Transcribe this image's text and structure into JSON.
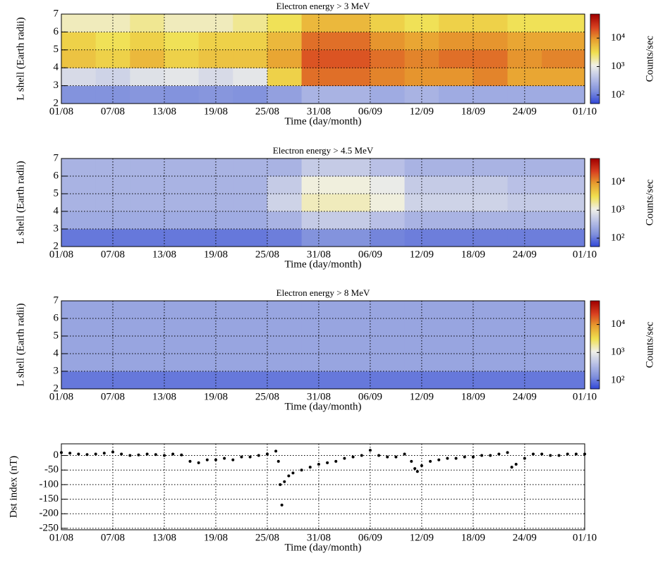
{
  "chart_data": [
    {
      "type": "heatmap",
      "title": "Electron energy > 3 MeV",
      "xlabel": "Time (day/month)",
      "ylabel": "L shell (Earth radii)",
      "zlabel": "Counts/sec",
      "x_edges": [
        0,
        4,
        8,
        12,
        16,
        20,
        24,
        28,
        32,
        36,
        40,
        44,
        48,
        52,
        56,
        61
      ],
      "y_edges": [
        2,
        3,
        4,
        5,
        6,
        7
      ],
      "z": [
        [
          150,
          150,
          160,
          150,
          160,
          150,
          200,
          300,
          300,
          250,
          300,
          250,
          250,
          250,
          250
        ],
        [
          700,
          600,
          800,
          900,
          700,
          900,
          4000,
          15000,
          15000,
          12000,
          10000,
          10000,
          12000,
          8000,
          8000
        ],
        [
          5000,
          4000,
          6000,
          4000,
          5000,
          5000,
          8000,
          20000,
          20000,
          15000,
          12000,
          15000,
          15000,
          10000,
          12000
        ],
        [
          4000,
          3000,
          4000,
          3000,
          4000,
          4000,
          6000,
          15000,
          15000,
          10000,
          8000,
          10000,
          10000,
          8000,
          8000
        ],
        [
          1500,
          1500,
          2000,
          1500,
          1500,
          2000,
          3000,
          6000,
          6000,
          4000,
          3000,
          4000,
          4000,
          3000,
          3000
        ]
      ],
      "xlim": [
        0,
        61
      ],
      "ylim": [
        2,
        7
      ],
      "zlim": [
        50,
        70000
      ],
      "zscale": "log",
      "xticks": [
        {
          "value": 0,
          "label": "01/08"
        },
        {
          "value": 6,
          "label": "07/08"
        },
        {
          "value": 12,
          "label": "13/08"
        },
        {
          "value": 18,
          "label": "19/08"
        },
        {
          "value": 24,
          "label": "25/08"
        },
        {
          "value": 30,
          "label": "31/08"
        },
        {
          "value": 36,
          "label": "06/09"
        },
        {
          "value": 42,
          "label": "12/09"
        },
        {
          "value": 48,
          "label": "18/09"
        },
        {
          "value": 54,
          "label": "24/09"
        },
        {
          "value": 61,
          "label": "01/10"
        }
      ],
      "yticks": [
        2,
        3,
        4,
        5,
        6,
        7
      ],
      "zticks": [
        {
          "value": 100,
          "label": "10²"
        },
        {
          "value": 1000,
          "label": "10³"
        },
        {
          "value": 10000,
          "label": "10⁴"
        }
      ],
      "colormap": [
        "#3046d8",
        "#8090dc",
        "#b8c0e6",
        "#f0f0e8",
        "#f0e050",
        "#e8a030",
        "#d84020",
        "#a00000"
      ],
      "grid": true
    },
    {
      "type": "heatmap",
      "title": "Electron energy > 4.5 MeV",
      "xlabel": "Time (day/month)",
      "ylabel": "L shell (Earth radii)",
      "zlabel": "Counts/sec",
      "x_edges": [
        0,
        4,
        8,
        12,
        16,
        20,
        24,
        28,
        32,
        36,
        40,
        44,
        48,
        52,
        56,
        61
      ],
      "y_edges": [
        2,
        3,
        4,
        5,
        6,
        7
      ],
      "z": [
        [
          100,
          100,
          100,
          100,
          100,
          100,
          110,
          150,
          150,
          120,
          110,
          110,
          110,
          110,
          110
        ],
        [
          250,
          250,
          250,
          250,
          250,
          250,
          300,
          500,
          500,
          400,
          300,
          300,
          300,
          300,
          300
        ],
        [
          300,
          300,
          300,
          300,
          300,
          300,
          600,
          1500,
          1500,
          1200,
          600,
          600,
          600,
          500,
          500
        ],
        [
          300,
          300,
          300,
          300,
          300,
          300,
          500,
          1200,
          1200,
          1000,
          500,
          500,
          500,
          400,
          400
        ],
        [
          300,
          300,
          300,
          300,
          300,
          300,
          300,
          500,
          500,
          400,
          300,
          300,
          300,
          300,
          300
        ]
      ],
      "xlim": [
        0,
        61
      ],
      "ylim": [
        2,
        7
      ],
      "zlim": [
        50,
        70000
      ],
      "zscale": "log",
      "xticks": [
        {
          "value": 0,
          "label": "01/08"
        },
        {
          "value": 6,
          "label": "07/08"
        },
        {
          "value": 12,
          "label": "13/08"
        },
        {
          "value": 18,
          "label": "19/08"
        },
        {
          "value": 24,
          "label": "25/08"
        },
        {
          "value": 30,
          "label": "31/08"
        },
        {
          "value": 36,
          "label": "06/09"
        },
        {
          "value": 42,
          "label": "12/09"
        },
        {
          "value": 48,
          "label": "18/09"
        },
        {
          "value": 54,
          "label": "24/09"
        },
        {
          "value": 61,
          "label": "01/10"
        }
      ],
      "yticks": [
        2,
        3,
        4,
        5,
        6,
        7
      ],
      "zticks": [
        {
          "value": 100,
          "label": "10²"
        },
        {
          "value": 1000,
          "label": "10³"
        },
        {
          "value": 10000,
          "label": "10⁴"
        }
      ],
      "colormap": [
        "#3046d8",
        "#8090dc",
        "#b8c0e6",
        "#f0f0e8",
        "#f0e050",
        "#e8a030",
        "#d84020",
        "#a00000"
      ],
      "grid": true
    },
    {
      "type": "heatmap",
      "title": "Electron energy > 8 MeV",
      "xlabel": "Time (day/month)",
      "ylabel": "L shell (Earth radii)",
      "zlabel": "Counts/sec",
      "x_edges": [
        0,
        4,
        8,
        12,
        16,
        20,
        24,
        28,
        32,
        36,
        40,
        44,
        48,
        52,
        56,
        61
      ],
      "y_edges": [
        2,
        3,
        4,
        5,
        6,
        7
      ],
      "z": [
        [
          100,
          100,
          100,
          100,
          100,
          100,
          100,
          100,
          100,
          100,
          100,
          100,
          100,
          100,
          100
        ],
        [
          220,
          220,
          220,
          220,
          220,
          220,
          220,
          220,
          220,
          220,
          220,
          220,
          220,
          220,
          220
        ],
        [
          220,
          220,
          220,
          220,
          220,
          220,
          220,
          220,
          220,
          220,
          220,
          220,
          220,
          220,
          220
        ],
        [
          220,
          220,
          220,
          220,
          220,
          220,
          220,
          220,
          220,
          220,
          220,
          220,
          220,
          220,
          220
        ],
        [
          220,
          220,
          220,
          220,
          220,
          220,
          220,
          220,
          220,
          220,
          220,
          220,
          220,
          220,
          220
        ]
      ],
      "xlim": [
        0,
        61
      ],
      "ylim": [
        2,
        7
      ],
      "zlim": [
        50,
        70000
      ],
      "zscale": "log",
      "xticks": [
        {
          "value": 0,
          "label": "01/08"
        },
        {
          "value": 6,
          "label": "07/08"
        },
        {
          "value": 12,
          "label": "13/08"
        },
        {
          "value": 18,
          "label": "19/08"
        },
        {
          "value": 24,
          "label": "25/08"
        },
        {
          "value": 30,
          "label": "31/08"
        },
        {
          "value": 36,
          "label": "06/09"
        },
        {
          "value": 42,
          "label": "12/09"
        },
        {
          "value": 48,
          "label": "18/09"
        },
        {
          "value": 54,
          "label": "24/09"
        },
        {
          "value": 61,
          "label": "01/10"
        }
      ],
      "yticks": [
        2,
        3,
        4,
        5,
        6,
        7
      ],
      "zticks": [
        {
          "value": 100,
          "label": "10²"
        },
        {
          "value": 1000,
          "label": "10³"
        },
        {
          "value": 10000,
          "label": "10⁴"
        }
      ],
      "colormap": [
        "#3046d8",
        "#8090dc",
        "#b8c0e6",
        "#f0f0e8",
        "#f0e050",
        "#e8a030",
        "#d84020",
        "#a00000"
      ],
      "grid": true
    },
    {
      "type": "scatter",
      "xlabel": "Time (day/month)",
      "ylabel": "Dst index (nT)",
      "color": "#000000",
      "x": [
        0,
        1,
        2,
        3,
        4,
        5,
        6,
        7,
        8,
        9,
        10,
        11,
        12,
        13,
        14,
        15,
        16,
        17,
        18,
        19,
        20,
        21,
        22,
        23,
        24,
        25,
        25.3,
        25.5,
        25.7,
        26,
        26.5,
        27,
        28,
        29,
        30,
        31,
        32,
        33,
        34,
        35,
        36,
        37,
        38,
        39,
        40,
        40.8,
        41.2,
        41.5,
        42,
        43,
        44,
        45,
        46,
        47,
        48,
        49,
        50,
        51,
        52,
        52.5,
        53,
        54,
        55,
        56,
        57,
        58,
        59,
        60,
        61
      ],
      "values": [
        10,
        8,
        5,
        3,
        5,
        8,
        12,
        5,
        0,
        2,
        5,
        3,
        0,
        5,
        2,
        -20,
        -25,
        -15,
        -15,
        -10,
        -15,
        -5,
        -5,
        0,
        5,
        15,
        -20,
        -100,
        -170,
        -90,
        -70,
        -60,
        -50,
        -40,
        -30,
        -25,
        -20,
        -10,
        -5,
        0,
        18,
        0,
        -5,
        -5,
        5,
        -20,
        -45,
        -55,
        -35,
        -20,
        -15,
        -10,
        -10,
        -5,
        -5,
        0,
        0,
        5,
        10,
        -40,
        -30,
        -10,
        5,
        5,
        0,
        0,
        5,
        5,
        5
      ],
      "xlim": [
        0,
        61
      ],
      "ylim": [
        -255,
        40
      ],
      "xticks": [
        {
          "value": 0,
          "label": "01/08"
        },
        {
          "value": 6,
          "label": "07/08"
        },
        {
          "value": 12,
          "label": "13/08"
        },
        {
          "value": 18,
          "label": "19/08"
        },
        {
          "value": 24,
          "label": "25/08"
        },
        {
          "value": 30,
          "label": "31/08"
        },
        {
          "value": 36,
          "label": "06/09"
        },
        {
          "value": 42,
          "label": "12/09"
        },
        {
          "value": 48,
          "label": "18/09"
        },
        {
          "value": 54,
          "label": "24/09"
        },
        {
          "value": 61,
          "label": "01/10"
        }
      ],
      "yticks": [
        -250,
        -200,
        -150,
        -100,
        -50,
        0
      ],
      "grid": true
    }
  ]
}
